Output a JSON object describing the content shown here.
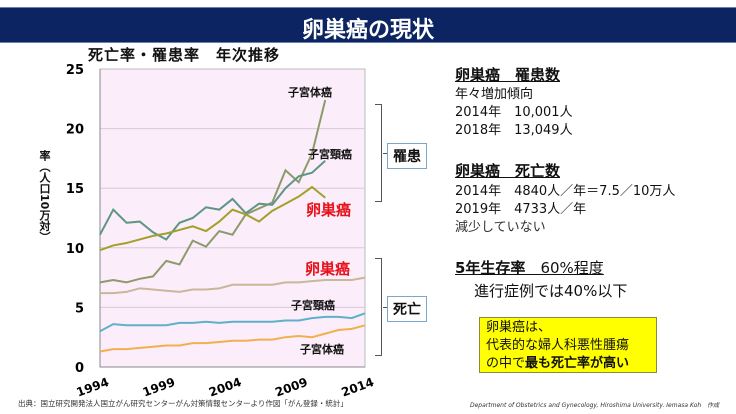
{
  "header": {
    "title": "卵巣癌の現状"
  },
  "chart_data": {
    "type": "line",
    "title": "死亡率・罹患率　年次推移",
    "ylabel": "率（人口10万対）",
    "xlabel": "",
    "ylim": [
      0,
      25
    ],
    "yticks": [
      "0",
      "5",
      "10",
      "15",
      "20",
      "25"
    ],
    "xticks": [
      "1994",
      "1999",
      "2004",
      "2009",
      "2014"
    ],
    "xlim": [
      1994,
      2014
    ],
    "grid": true,
    "background": "#fbeefa",
    "groups": [
      {
        "name": "罹患"
      },
      {
        "name": "死亡"
      }
    ],
    "series": [
      {
        "name": "子宮体癌",
        "group": "罹患",
        "color": "#8c9a6c",
        "start": 1994,
        "values": [
          7.1,
          7.3,
          7.1,
          7.4,
          7.6,
          8.9,
          8.6,
          10.6,
          10.1,
          11.4,
          11.1,
          12.8,
          13.3,
          13.8,
          16.5,
          15.5,
          17.9,
          22.4
        ]
      },
      {
        "name": "子宮頸癌",
        "group": "罹患",
        "color": "#5e9683",
        "start": 1994,
        "values": [
          11.1,
          13.2,
          12.1,
          12.2,
          11.3,
          10.7,
          12.1,
          12.5,
          13.4,
          13.2,
          14.1,
          12.9,
          13.7,
          13.6,
          15.0,
          16.0,
          16.3,
          17.3
        ]
      },
      {
        "name": "卵巣癌",
        "group": "罹患",
        "color": "#a3a02a",
        "start": 1994,
        "values": [
          9.8,
          10.2,
          10.4,
          10.7,
          11.0,
          11.2,
          11.5,
          11.8,
          11.4,
          12.2,
          13.2,
          12.8,
          12.2,
          13.1,
          13.7,
          14.3,
          15.1,
          14.2
        ]
      },
      {
        "name": "卵巣癌",
        "group": "死亡",
        "color": "#c8b79a",
        "start": 1994,
        "values": [
          6.2,
          6.2,
          6.3,
          6.6,
          6.5,
          6.4,
          6.3,
          6.5,
          6.5,
          6.6,
          6.9,
          6.9,
          6.9,
          6.9,
          7.1,
          7.1,
          7.2,
          7.3,
          7.3,
          7.3,
          7.5
        ]
      },
      {
        "name": "子宮頸癌",
        "group": "死亡",
        "color": "#5fb0c8",
        "start": 1994,
        "values": [
          3.0,
          3.6,
          3.5,
          3.5,
          3.5,
          3.5,
          3.7,
          3.7,
          3.8,
          3.7,
          3.8,
          3.8,
          3.8,
          3.8,
          3.9,
          3.9,
          4.1,
          4.2,
          4.2,
          4.1,
          4.5
        ]
      },
      {
        "name": "子宮体癌",
        "group": "死亡",
        "color": "#f0b050",
        "start": 1994,
        "values": [
          1.3,
          1.5,
          1.5,
          1.6,
          1.7,
          1.8,
          1.8,
          2.0,
          2.0,
          2.1,
          2.2,
          2.2,
          2.3,
          2.3,
          2.5,
          2.6,
          2.5,
          2.8,
          3.1,
          3.2,
          3.5
        ]
      }
    ]
  },
  "right": {
    "incidence_heading": "卵巣癌　罹患数",
    "incidence_lines": [
      "年々増加傾向",
      "2014年　10,001人",
      "2018年　13,049人"
    ],
    "death_heading": "卵巣癌　死亡数",
    "death_lines": [
      "2014年　4840人／年＝7.5／10万人",
      "2019年　4733人／年",
      "減少していない"
    ],
    "survival_heading": "5年生存率",
    "survival_value": "60%程度",
    "survival_sub": "進行症例では40%以下",
    "note_line1": "卵巣癌は、",
    "note_line2": "代表的な婦人科悪性腫瘍",
    "note_line3a": "の中で",
    "note_line3b": "最も死亡率が高い"
  },
  "footer": {
    "source": "出典：国立研究開発法人国立がん研究センターがん対策情報センターより作図「がん登録・統計」",
    "credit": "Department of Obstetrics and Gynecology, Hiroshima University. Iemasa Koh　作成"
  }
}
